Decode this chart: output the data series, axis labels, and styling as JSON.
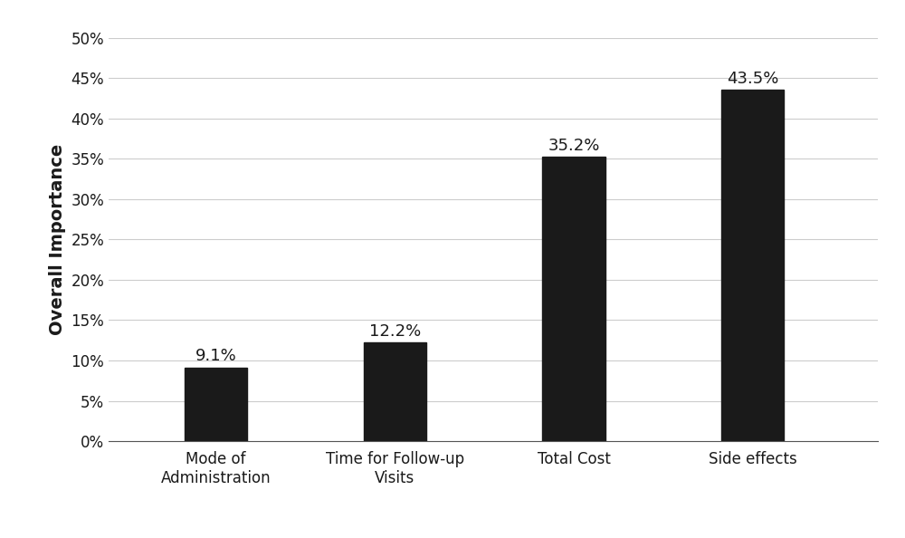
{
  "categories": [
    "Mode of\nAdministration",
    "Time for Follow-up\nVisits",
    "Total Cost",
    "Side effects"
  ],
  "values": [
    9.1,
    12.2,
    35.2,
    43.5
  ],
  "labels": [
    "9.1%",
    "12.2%",
    "35.2%",
    "43.5%"
  ],
  "bar_color": "#1a1a1a",
  "ylabel": "Overall Importance",
  "ylim": [
    0,
    50
  ],
  "yticks": [
    0,
    5,
    10,
    15,
    20,
    25,
    30,
    35,
    40,
    45,
    50
  ],
  "ytick_labels": [
    "0%",
    "5%",
    "10%",
    "15%",
    "20%",
    "25%",
    "30%",
    "35%",
    "40%",
    "45%",
    "50%"
  ],
  "grid_color": "#cccccc",
  "background_color": "#ffffff",
  "bar_width": 0.35,
  "ylabel_fontsize": 14,
  "tick_fontsize": 12,
  "annotation_fontsize": 13
}
